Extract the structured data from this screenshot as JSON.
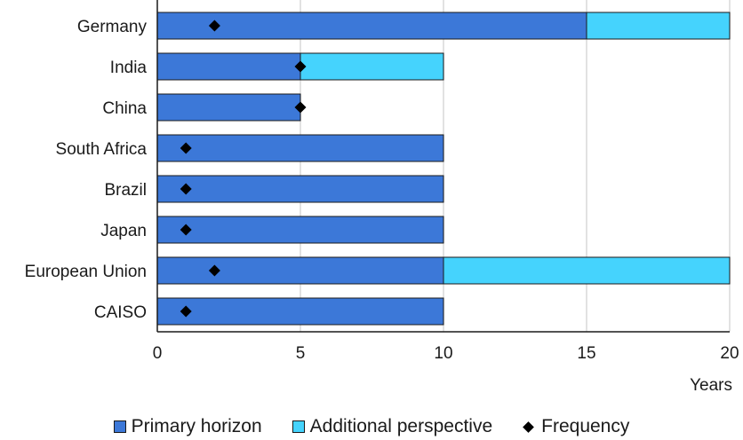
{
  "chart_data": {
    "type": "bar",
    "orientation": "horizontal",
    "stacked": true,
    "categories": [
      "Germany",
      "India",
      "China",
      "South Africa",
      "Brazil",
      "Japan",
      "European Union",
      "CAISO"
    ],
    "series": [
      {
        "name": "Primary horizon",
        "values": [
          15,
          5,
          5,
          10,
          10,
          10,
          10,
          10
        ],
        "color": "#3c78d8"
      },
      {
        "name": "Additional perspective",
        "values": [
          5,
          5,
          0,
          0,
          0,
          0,
          10,
          0
        ],
        "color": "#45d3fd"
      }
    ],
    "markers": {
      "name": "Frequency",
      "values": [
        2,
        5,
        5,
        1,
        1,
        1,
        2,
        1
      ],
      "color": "#000000",
      "shape": "diamond"
    },
    "xlabel": "Years",
    "xlim": [
      0,
      20
    ],
    "xticks": [
      0,
      5,
      10,
      15,
      20
    ],
    "grid": "vertical",
    "legend_position": "bottom"
  },
  "legend": {
    "items": [
      {
        "label": "Primary horizon",
        "kind": "swatch",
        "color": "#3c78d8"
      },
      {
        "label": "Additional perspective",
        "kind": "swatch",
        "color": "#45d3fd"
      },
      {
        "label": "Frequency",
        "kind": "diamond",
        "color": "#000000"
      }
    ]
  }
}
